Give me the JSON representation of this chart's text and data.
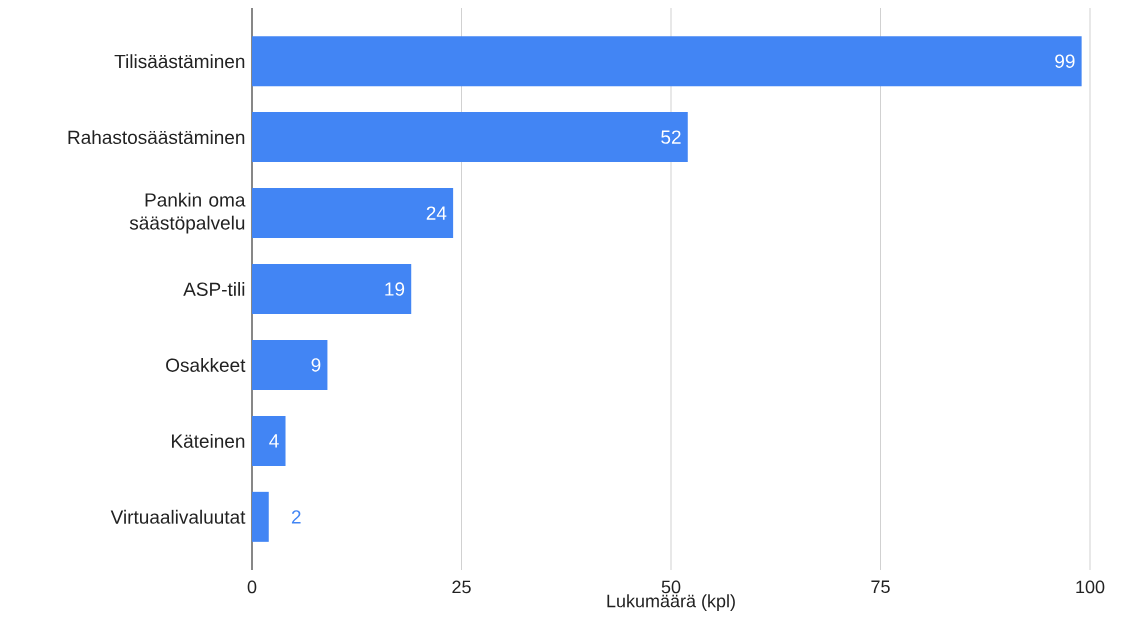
{
  "chart_data": {
    "type": "bar",
    "orientation": "horizontal",
    "xlabel": "Lukumäärä (kpl)",
    "categories": [
      "Tilisäästäminen",
      "Rahastosäästäminen",
      "Pankin oma säästöpalvelu",
      "ASP-tili",
      "Osakkeet",
      "Käteinen",
      "Virtuaalivaluutat"
    ],
    "values": [
      99,
      52,
      24,
      19,
      9,
      4,
      2
    ],
    "color": "#4285f4",
    "xlim": [
      0,
      100
    ],
    "xticks": [
      0,
      25,
      50,
      75,
      100
    ],
    "grid": "x",
    "data_labels": true
  }
}
